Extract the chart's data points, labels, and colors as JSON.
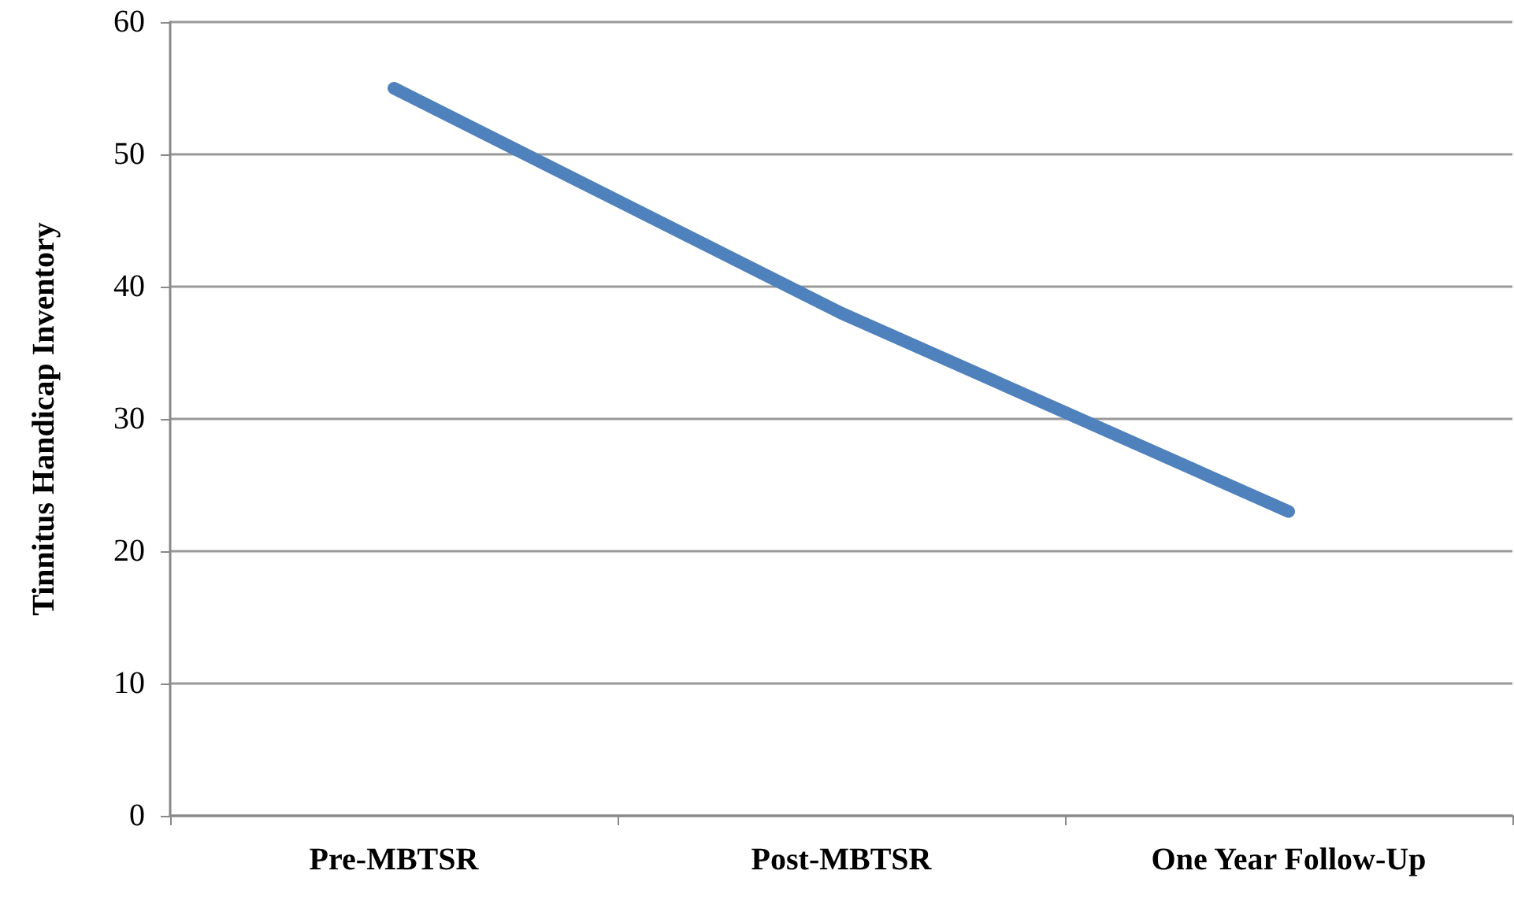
{
  "chart_data": {
    "type": "line",
    "ylabel": "Tinnitus Handicap Inventory",
    "categories": [
      "Pre-MBTSR",
      "Post-MBTSR",
      "One Year Follow-Up"
    ],
    "series": [
      {
        "color": "#4f81bd",
        "values": [
          55,
          38,
          23
        ]
      }
    ],
    "ylim": [
      0,
      60
    ],
    "yticks": [
      0,
      10,
      20,
      30,
      40,
      50,
      60
    ],
    "grid": "y",
    "marker": "none",
    "line_style": "solid"
  }
}
